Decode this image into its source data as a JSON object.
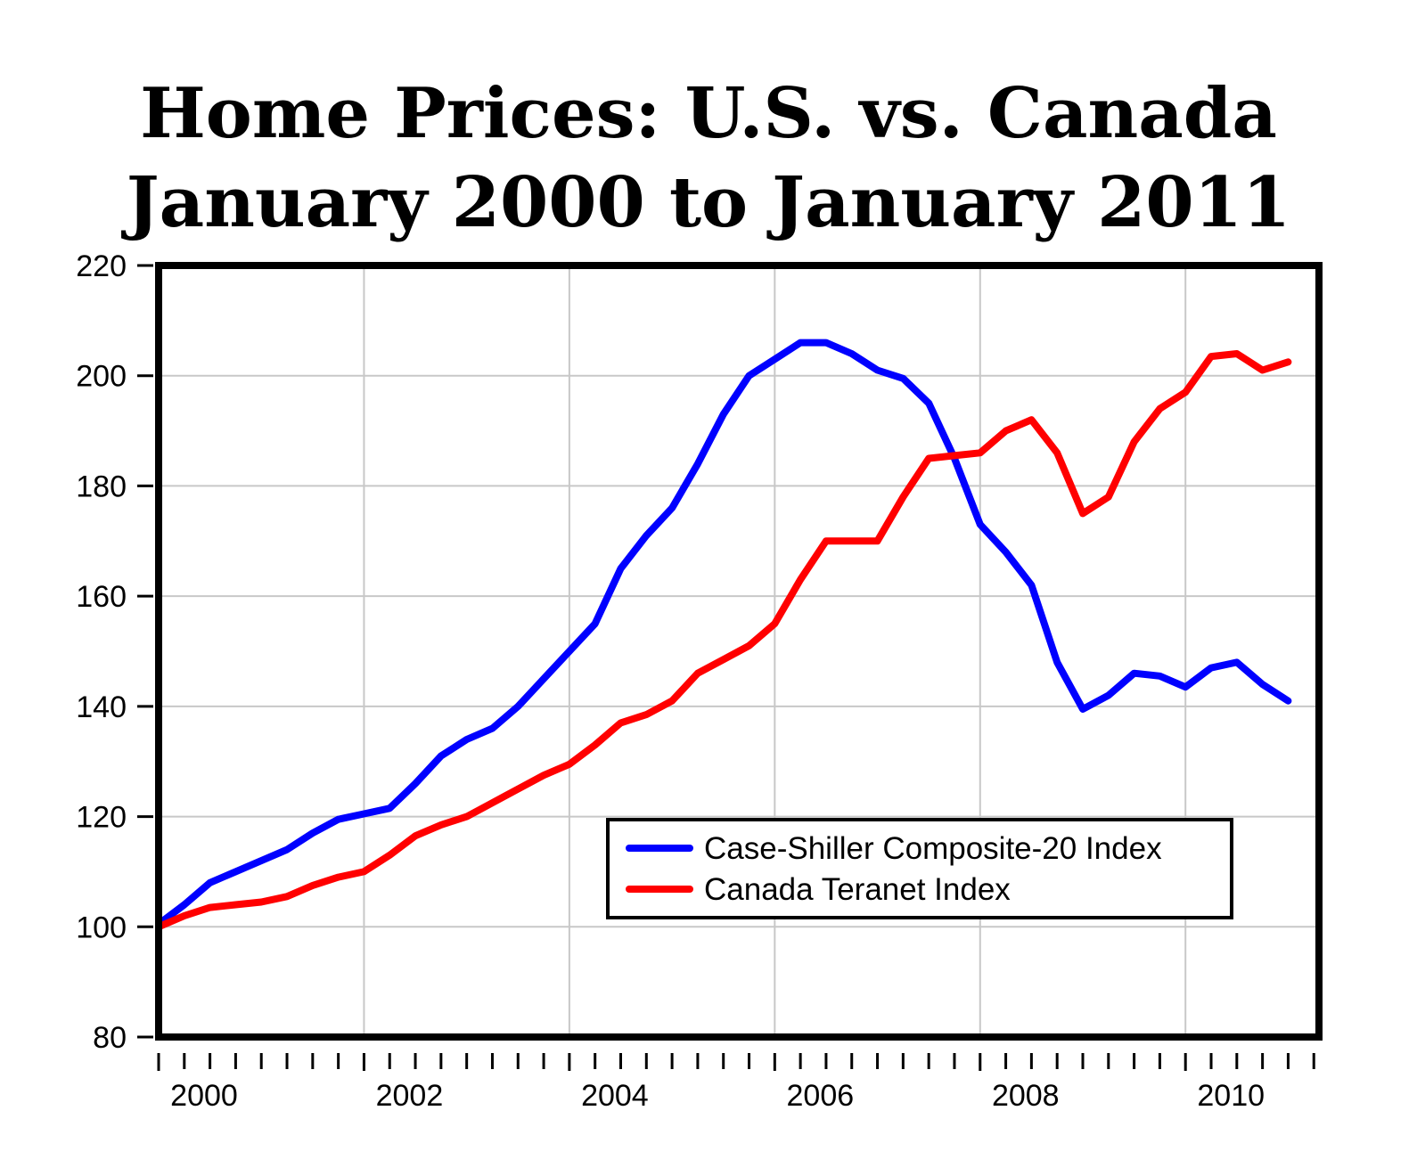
{
  "chart_data": {
    "type": "line",
    "title": "Home Prices: U.S. vs. Canada",
    "subtitle": "January 2000 to January 2011",
    "xlabel": "",
    "ylabel": "",
    "xlim": [
      2000,
      2011.3
    ],
    "ylim": [
      80,
      220
    ],
    "x_ticks": [
      2000,
      2002,
      2004,
      2006,
      2008,
      2010
    ],
    "y_ticks": [
      80,
      100,
      120,
      140,
      160,
      180,
      200,
      220
    ],
    "grid": true,
    "legend_position": "lower-right",
    "series": [
      {
        "name": "Case-Shiller Composite-20 Index",
        "color": "#0000ff",
        "points": [
          [
            2000.0,
            100.5
          ],
          [
            2000.25,
            104.0
          ],
          [
            2000.5,
            108.0
          ],
          [
            2000.75,
            110.0
          ],
          [
            2001.0,
            112.0
          ],
          [
            2001.25,
            114.0
          ],
          [
            2001.5,
            117.0
          ],
          [
            2001.75,
            119.5
          ],
          [
            2002.0,
            120.5
          ],
          [
            2002.25,
            121.5
          ],
          [
            2002.5,
            126.0
          ],
          [
            2002.75,
            131.0
          ],
          [
            2003.0,
            134.0
          ],
          [
            2003.25,
            136.0
          ],
          [
            2003.5,
            140.0
          ],
          [
            2003.75,
            145.0
          ],
          [
            2004.0,
            150.0
          ],
          [
            2004.25,
            155.0
          ],
          [
            2004.5,
            165.0
          ],
          [
            2004.75,
            171.0
          ],
          [
            2005.0,
            176.0
          ],
          [
            2005.25,
            184.0
          ],
          [
            2005.5,
            193.0
          ],
          [
            2005.75,
            200.0
          ],
          [
            2006.0,
            203.0
          ],
          [
            2006.25,
            206.0
          ],
          [
            2006.5,
            206.0
          ],
          [
            2006.75,
            204.0
          ],
          [
            2007.0,
            201.0
          ],
          [
            2007.25,
            199.5
          ],
          [
            2007.5,
            195.0
          ],
          [
            2007.75,
            185.0
          ],
          [
            2008.0,
            173.0
          ],
          [
            2008.25,
            168.0
          ],
          [
            2008.5,
            162.0
          ],
          [
            2008.75,
            148.0
          ],
          [
            2009.0,
            139.5
          ],
          [
            2009.25,
            142.0
          ],
          [
            2009.5,
            146.0
          ],
          [
            2009.75,
            145.5
          ],
          [
            2010.0,
            143.5
          ],
          [
            2010.25,
            147.0
          ],
          [
            2010.5,
            148.0
          ],
          [
            2010.75,
            144.0
          ],
          [
            2011.0,
            141.0
          ]
        ]
      },
      {
        "name": "Canada Teranet Index",
        "color": "#ff0000",
        "points": [
          [
            2000.0,
            100.0
          ],
          [
            2000.25,
            102.0
          ],
          [
            2000.5,
            103.5
          ],
          [
            2000.75,
            104.0
          ],
          [
            2001.0,
            104.5
          ],
          [
            2001.25,
            105.5
          ],
          [
            2001.5,
            107.5
          ],
          [
            2001.75,
            109.0
          ],
          [
            2002.0,
            110.0
          ],
          [
            2002.25,
            113.0
          ],
          [
            2002.5,
            116.5
          ],
          [
            2002.75,
            118.5
          ],
          [
            2003.0,
            120.0
          ],
          [
            2003.25,
            122.5
          ],
          [
            2003.5,
            125.0
          ],
          [
            2003.75,
            127.5
          ],
          [
            2004.0,
            129.5
          ],
          [
            2004.25,
            133.0
          ],
          [
            2004.5,
            137.0
          ],
          [
            2004.75,
            138.5
          ],
          [
            2005.0,
            141.0
          ],
          [
            2005.25,
            146.0
          ],
          [
            2005.5,
            148.5
          ],
          [
            2005.75,
            151.0
          ],
          [
            2006.0,
            155.0
          ],
          [
            2006.25,
            163.0
          ],
          [
            2006.5,
            170.0
          ],
          [
            2006.75,
            170.0
          ],
          [
            2007.0,
            170.0
          ],
          [
            2007.25,
            178.0
          ],
          [
            2007.5,
            185.0
          ],
          [
            2007.75,
            185.5
          ],
          [
            2008.0,
            186.0
          ],
          [
            2008.25,
            190.0
          ],
          [
            2008.5,
            192.0
          ],
          [
            2008.75,
            186.0
          ],
          [
            2009.0,
            175.0
          ],
          [
            2009.25,
            178.0
          ],
          [
            2009.5,
            188.0
          ],
          [
            2009.75,
            194.0
          ],
          [
            2010.0,
            197.0
          ],
          [
            2010.25,
            203.5
          ],
          [
            2010.5,
            204.0
          ],
          [
            2010.75,
            201.0
          ],
          [
            2011.0,
            202.5
          ]
        ]
      }
    ]
  }
}
